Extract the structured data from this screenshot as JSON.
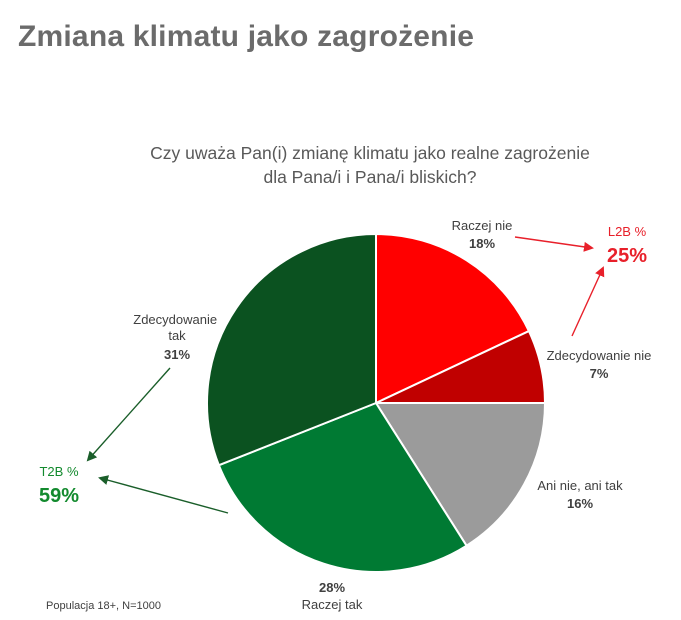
{
  "page_title": "Zmiana klimatu jako zagrożenie",
  "footnote": "Populacja 18+, N=1000",
  "colors": {
    "red_bright": "#ff0000",
    "red_dark": "#c00000",
    "grey": "#9b9b9b",
    "green_mid": "#007a33",
    "green_dark": "#0b5220",
    "l2b_red": "#e8202a",
    "t2b_green": "#138a2e",
    "label": "#404040"
  },
  "chart_data": {
    "type": "pie",
    "title_lines": [
      "Czy uważa Pan(i) zmianę klimatu jako realne zagrożenie",
      "dla Pana/i i Pana/i bliskich?"
    ],
    "slices": [
      {
        "label": "Raczej nie",
        "value": 18,
        "display": "18%",
        "color": "#ff0000"
      },
      {
        "label": "Zdecydowanie nie",
        "value": 7,
        "display": "7%",
        "color": "#c00000"
      },
      {
        "label": "Ani nie, ani tak",
        "value": 16,
        "display": "16%",
        "color": "#9b9b9b"
      },
      {
        "label": "Raczej tak",
        "value": 28,
        "display": "28%",
        "color": "#007a33"
      },
      {
        "label": "Zdecydowanie tak",
        "value": 31,
        "display": "31%",
        "color": "#0b5220"
      }
    ],
    "summaries": [
      {
        "label": "L2B %",
        "value": 25,
        "display": "25%",
        "color": "#e8202a"
      },
      {
        "label": "T2B %",
        "value": 59,
        "display": "59%",
        "color": "#138a2e"
      }
    ]
  }
}
